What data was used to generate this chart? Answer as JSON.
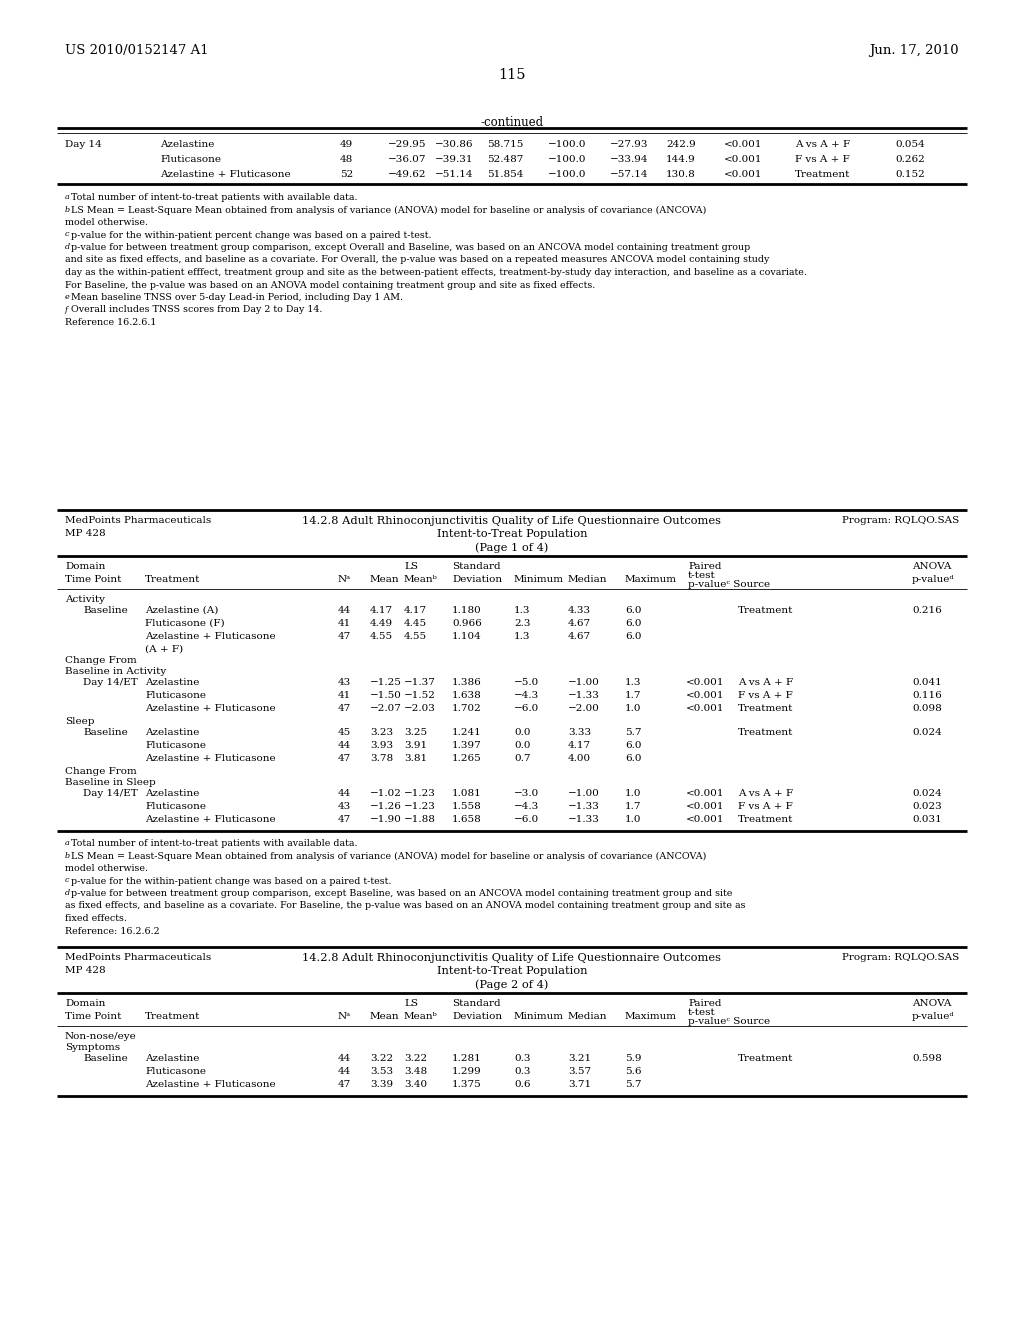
{
  "header_left": "US 2010/0152147 A1",
  "header_right": "Jun. 17, 2010",
  "page_number": "115",
  "continued_label": "-continued",
  "table1_day14_rows": [
    [
      "Day 14",
      "Azelastine",
      "49",
      "−29.95",
      "−30.86",
      "58.715",
      "−100.0",
      "−27.93",
      "242.9",
      "<0.001",
      "A vs A + F",
      "0.054"
    ],
    [
      "",
      "Fluticasone",
      "48",
      "−36.07",
      "−39.31",
      "52.487",
      "−100.0",
      "−33.94",
      "144.9",
      "<0.001",
      "F vs A + F",
      "0.262"
    ],
    [
      "",
      "Azelastine + Fluticasone",
      "52",
      "−49.62",
      "−51.14",
      "51.854",
      "−100.0",
      "−57.14",
      "130.8",
      "<0.001",
      "Treatment",
      "0.152"
    ]
  ],
  "footnotes1_items": [
    [
      "a",
      "Total number of intent-to-treat patients with available data."
    ],
    [
      "b",
      "LS Mean = Least-Square Mean obtained from analysis of variance (ANOVA) model for baseline or analysis of covariance (ANCOVA)"
    ],
    [
      "",
      "model otherwise."
    ],
    [
      "c",
      "p-value for the within-patient percent change was based on a paired t-test."
    ],
    [
      "d",
      "p-value for between treatment group comparison, except Overall and Baseline, was based on an ANCOVA model containing treatment group"
    ],
    [
      "",
      "and site as fixed effects, and baseline as a covariate. For Overall, the p-value was based on a repeated measures ANCOVA model containing study"
    ],
    [
      "",
      "day as the within-patient efffect, treatment group and site as the between-patient effects, treatment-by-study day interaction, and baseline as a covariate."
    ],
    [
      "",
      "For Baseline, the p-value was based on an ANOVA model containing treatment group and site as fixed effects."
    ],
    [
      "e",
      "Mean baseline TNSS over 5-day Lead-in Period, including Day 1 AM."
    ],
    [
      "f",
      "Overall includes TNSS scores from Day 2 to Day 14."
    ],
    [
      "",
      "Reference 16.2.6.1"
    ]
  ],
  "section2_company": "MedPoints Pharmaceuticals",
  "section2_mp": "MP 428",
  "section2_program": "Program: RQLQO.SAS",
  "section2_title1": "14.2.8 Adult Rhinoconjunctivitis Quality of Life Questionnaire Outcomes",
  "section2_title2": "Intent-to-Treat Population",
  "section2_title3": "(Page 1 of 4)",
  "table2_data": [
    {
      "domain": "Activity",
      "timepoint": "",
      "treatment": "",
      "n": "",
      "mean": "",
      "ls_mean": "",
      "std": "",
      "min": "",
      "median": "",
      "max": "",
      "paired_pval": "",
      "source": "",
      "anova_pval": ""
    },
    {
      "domain": "",
      "timepoint": "Baseline",
      "treatment": "Azelastine (A)",
      "n": "44",
      "mean": "4.17",
      "ls_mean": "4.17",
      "std": "1.180",
      "min": "1.3",
      "median": "4.33",
      "max": "6.0",
      "paired_pval": "",
      "source": "Treatment",
      "anova_pval": "0.216"
    },
    {
      "domain": "",
      "timepoint": "",
      "treatment": "Fluticasone (F)",
      "n": "41",
      "mean": "4.49",
      "ls_mean": "4.45",
      "std": "0.966",
      "min": "2.3",
      "median": "4.67",
      "max": "6.0",
      "paired_pval": "",
      "source": "",
      "anova_pval": ""
    },
    {
      "domain": "",
      "timepoint": "",
      "treatment": "Azelastine + Fluticasone",
      "n": "47",
      "mean": "4.55",
      "ls_mean": "4.55",
      "std": "1.104",
      "min": "1.3",
      "median": "4.67",
      "max": "6.0",
      "paired_pval": "",
      "source": "",
      "anova_pval": ""
    },
    {
      "domain": "",
      "timepoint": "",
      "treatment": "(A + F)",
      "n": "",
      "mean": "",
      "ls_mean": "",
      "std": "",
      "min": "",
      "median": "",
      "max": "",
      "paired_pval": "",
      "source": "",
      "anova_pval": ""
    },
    {
      "domain": "Change From",
      "timepoint": "",
      "treatment": "",
      "n": "",
      "mean": "",
      "ls_mean": "",
      "std": "",
      "min": "",
      "median": "",
      "max": "",
      "paired_pval": "",
      "source": "",
      "anova_pval": ""
    },
    {
      "domain": "Baseline in Activity",
      "timepoint": "",
      "treatment": "",
      "n": "",
      "mean": "",
      "ls_mean": "",
      "std": "",
      "min": "",
      "median": "",
      "max": "",
      "paired_pval": "",
      "source": "",
      "anova_pval": ""
    },
    {
      "domain": "",
      "timepoint": "Day 14/ET",
      "treatment": "Azelastine",
      "n": "43",
      "mean": "−1.25",
      "ls_mean": "−1.37",
      "std": "1.386",
      "min": "−5.0",
      "median": "−1.00",
      "max": "1.3",
      "paired_pval": "<0.001",
      "source": "A vs A + F",
      "anova_pval": "0.041"
    },
    {
      "domain": "",
      "timepoint": "",
      "treatment": "Fluticasone",
      "n": "41",
      "mean": "−1.50",
      "ls_mean": "−1.52",
      "std": "1.638",
      "min": "−4.3",
      "median": "−1.33",
      "max": "1.7",
      "paired_pval": "<0.001",
      "source": "F vs A + F",
      "anova_pval": "0.116"
    },
    {
      "domain": "",
      "timepoint": "",
      "treatment": "Azelastine + Fluticasone",
      "n": "47",
      "mean": "−2.07",
      "ls_mean": "−2.03",
      "std": "1.702",
      "min": "−6.0",
      "median": "−2.00",
      "max": "1.0",
      "paired_pval": "<0.001",
      "source": "Treatment",
      "anova_pval": "0.098"
    },
    {
      "domain": "Sleep",
      "timepoint": "",
      "treatment": "",
      "n": "",
      "mean": "",
      "ls_mean": "",
      "std": "",
      "min": "",
      "median": "",
      "max": "",
      "paired_pval": "",
      "source": "",
      "anova_pval": ""
    },
    {
      "domain": "",
      "timepoint": "Baseline",
      "treatment": "Azelastine",
      "n": "45",
      "mean": "3.23",
      "ls_mean": "3.25",
      "std": "1.241",
      "min": "0.0",
      "median": "3.33",
      "max": "5.7",
      "paired_pval": "",
      "source": "Treatment",
      "anova_pval": "0.024"
    },
    {
      "domain": "",
      "timepoint": "",
      "treatment": "Fluticasone",
      "n": "44",
      "mean": "3.93",
      "ls_mean": "3.91",
      "std": "1.397",
      "min": "0.0",
      "median": "4.17",
      "max": "6.0",
      "paired_pval": "",
      "source": "",
      "anova_pval": ""
    },
    {
      "domain": "",
      "timepoint": "",
      "treatment": "Azelastine + Fluticasone",
      "n": "47",
      "mean": "3.78",
      "ls_mean": "3.81",
      "std": "1.265",
      "min": "0.7",
      "median": "4.00",
      "max": "6.0",
      "paired_pval": "",
      "source": "",
      "anova_pval": ""
    },
    {
      "domain": "Change From",
      "timepoint": "",
      "treatment": "",
      "n": "",
      "mean": "",
      "ls_mean": "",
      "std": "",
      "min": "",
      "median": "",
      "max": "",
      "paired_pval": "",
      "source": "",
      "anova_pval": ""
    },
    {
      "domain": "Baseline in Sleep",
      "timepoint": "",
      "treatment": "",
      "n": "",
      "mean": "",
      "ls_mean": "",
      "std": "",
      "min": "",
      "median": "",
      "max": "",
      "paired_pval": "",
      "source": "",
      "anova_pval": ""
    },
    {
      "domain": "",
      "timepoint": "Day 14/ET",
      "treatment": "Azelastine",
      "n": "44",
      "mean": "−1.02",
      "ls_mean": "−1.23",
      "std": "1.081",
      "min": "−3.0",
      "median": "−1.00",
      "max": "1.0",
      "paired_pval": "<0.001",
      "source": "A vs A + F",
      "anova_pval": "0.024"
    },
    {
      "domain": "",
      "timepoint": "",
      "treatment": "Fluticasone",
      "n": "43",
      "mean": "−1.26",
      "ls_mean": "−1.23",
      "std": "1.558",
      "min": "−4.3",
      "median": "−1.33",
      "max": "1.7",
      "paired_pval": "<0.001",
      "source": "F vs A + F",
      "anova_pval": "0.023"
    },
    {
      "domain": "",
      "timepoint": "",
      "treatment": "Azelastine + Fluticasone",
      "n": "47",
      "mean": "−1.90",
      "ls_mean": "−1.88",
      "std": "1.658",
      "min": "−6.0",
      "median": "−1.33",
      "max": "1.0",
      "paired_pval": "<0.001",
      "source": "Treatment",
      "anova_pval": "0.031"
    }
  ],
  "footnotes2_items": [
    [
      "a",
      "Total number of intent-to-treat patients with available data."
    ],
    [
      "b",
      "LS Mean = Least-Square Mean obtained from analysis of variance (ANOVA) model for baseline or analysis of covariance (ANCOVA)"
    ],
    [
      "",
      "model otherwise."
    ],
    [
      "c",
      "p-value for the within-patient change was based on a paired t-test."
    ],
    [
      "d",
      "p-value for between treatment group comparison, except Baseline, was based on an ANCOVA model containing treatment group and site"
    ],
    [
      "",
      "as fixed effects, and baseline as a covariate. For Baseline, the p-value was based on an ANOVA model containing treatment group and site as"
    ],
    [
      "",
      "fixed effects."
    ],
    [
      "",
      "Reference: 16.2.6.2"
    ]
  ],
  "section3_company": "MedPoints Pharmaceuticals",
  "section3_mp": "MP 428",
  "section3_program": "Program: RQLQO.SAS",
  "section3_title1": "14.2.8 Adult Rhinoconjunctivitis Quality of Life Questionnaire Outcomes",
  "section3_title2": "Intent-to-Treat Population",
  "section3_title3": "(Page 2 of 4)",
  "table3_data": [
    {
      "domain": "Non-nose/eye",
      "timepoint": "",
      "treatment": "",
      "n": "",
      "mean": "",
      "ls_mean": "",
      "std": "",
      "min": "",
      "median": "",
      "max": "",
      "paired_pval": "",
      "source": "",
      "anova_pval": ""
    },
    {
      "domain": "Symptoms",
      "timepoint": "",
      "treatment": "",
      "n": "",
      "mean": "",
      "ls_mean": "",
      "std": "",
      "min": "",
      "median": "",
      "max": "",
      "paired_pval": "",
      "source": "",
      "anova_pval": ""
    },
    {
      "domain": "",
      "timepoint": "Baseline",
      "treatment": "Azelastine",
      "n": "44",
      "mean": "3.22",
      "ls_mean": "3.22",
      "std": "1.281",
      "min": "0.3",
      "median": "3.21",
      "max": "5.9",
      "paired_pval": "",
      "source": "Treatment",
      "anova_pval": "0.598"
    },
    {
      "domain": "",
      "timepoint": "",
      "treatment": "Fluticasone",
      "n": "44",
      "mean": "3.53",
      "ls_mean": "3.48",
      "std": "1.299",
      "min": "0.3",
      "median": "3.57",
      "max": "5.6",
      "paired_pval": "",
      "source": "",
      "anova_pval": ""
    },
    {
      "domain": "",
      "timepoint": "",
      "treatment": "Azelastine + Fluticasone",
      "n": "47",
      "mean": "3.39",
      "ls_mean": "3.40",
      "std": "1.375",
      "min": "0.6",
      "median": "3.71",
      "max": "5.7",
      "paired_pval": "",
      "source": "",
      "anova_pval": ""
    }
  ]
}
